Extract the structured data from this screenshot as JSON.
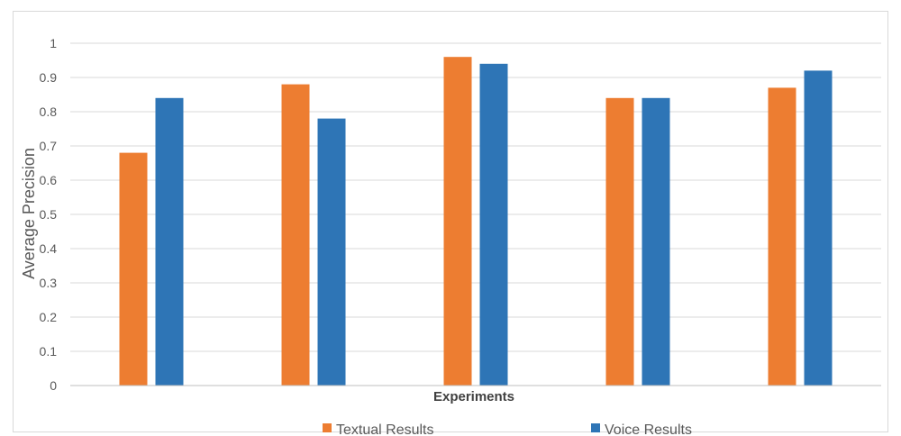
{
  "chart_data": {
    "type": "bar",
    "title": "",
    "xlabel": "Experiments",
    "ylabel": "Average Precision",
    "ylim": [
      0,
      1
    ],
    "yticks": [
      "0",
      "0.1",
      "0.2",
      "0.3",
      "0.4",
      "0.5",
      "0.6",
      "0.7",
      "0.8",
      "0.9",
      "1"
    ],
    "grid": true,
    "legend_position": "bottom",
    "categories": [
      "",
      "",
      "",
      "",
      ""
    ],
    "series": [
      {
        "name": "Textual Results",
        "color": "#ED7D31",
        "values": [
          0.68,
          0.88,
          0.96,
          0.84,
          0.87
        ]
      },
      {
        "name": "Voice Results",
        "color": "#2E75B6",
        "values": [
          0.84,
          0.78,
          0.94,
          0.84,
          0.92
        ]
      }
    ]
  }
}
